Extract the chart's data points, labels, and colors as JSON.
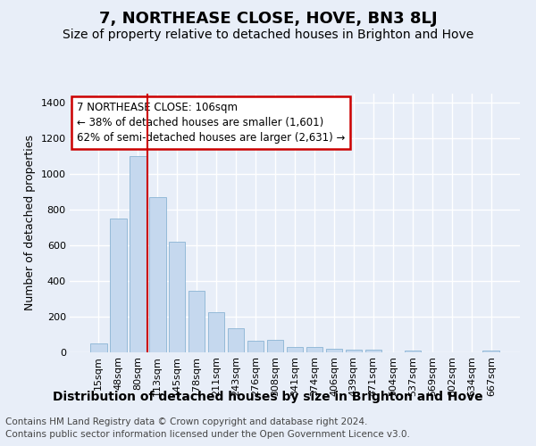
{
  "title": "7, NORTHEASE CLOSE, HOVE, BN3 8LJ",
  "subtitle": "Size of property relative to detached houses in Brighton and Hove",
  "xlabel": "Distribution of detached houses by size in Brighton and Hove",
  "ylabel": "Number of detached properties",
  "footer1": "Contains HM Land Registry data © Crown copyright and database right 2024.",
  "footer2": "Contains public sector information licensed under the Open Government Licence v3.0.",
  "annotation_line1": "7 NORTHEASE CLOSE: 106sqm",
  "annotation_line2": "← 38% of detached houses are smaller (1,601)",
  "annotation_line3": "62% of semi-detached houses are larger (2,631) →",
  "categories": [
    "15sqm",
    "48sqm",
    "80sqm",
    "113sqm",
    "145sqm",
    "178sqm",
    "211sqm",
    "243sqm",
    "276sqm",
    "308sqm",
    "341sqm",
    "374sqm",
    "406sqm",
    "439sqm",
    "471sqm",
    "504sqm",
    "537sqm",
    "569sqm",
    "602sqm",
    "634sqm",
    "667sqm"
  ],
  "values": [
    50,
    750,
    1100,
    870,
    620,
    345,
    225,
    133,
    65,
    70,
    28,
    28,
    22,
    15,
    15,
    0,
    10,
    0,
    0,
    0,
    10
  ],
  "bar_color": "#c5d8ee",
  "bar_edge_color": "#8ab4d4",
  "vline_color": "#cc0000",
  "vline_x": 2.5,
  "ylim_max": 1450,
  "yticks": [
    0,
    200,
    400,
    600,
    800,
    1000,
    1200,
    1400
  ],
  "bg_color": "#e8eef8",
  "grid_color": "#ffffff",
  "annotation_edge_color": "#cc0000",
  "title_fontsize": 13,
  "subtitle_fontsize": 10,
  "ylabel_fontsize": 9,
  "xlabel_fontsize": 10,
  "tick_fontsize": 8,
  "annotation_fontsize": 8.5,
  "footer_fontsize": 7.5
}
